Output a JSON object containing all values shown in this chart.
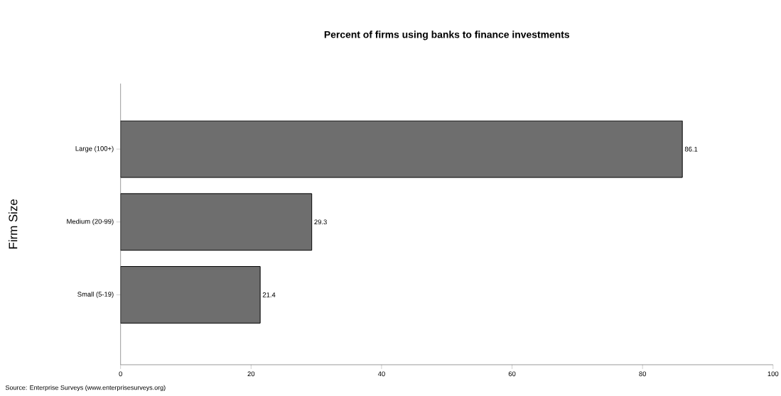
{
  "chart_data": {
    "type": "bar",
    "orientation": "horizontal",
    "title": "Percent of firms using banks to finance investments",
    "ylabel": "Firm Size",
    "categories": [
      "Large (100+)",
      "Medium (20-99)",
      "Small (5-19)"
    ],
    "values": [
      86.1,
      29.3,
      21.4
    ],
    "color": "#6e6e6e",
    "xlim": [
      0,
      100
    ],
    "xticks": [
      0,
      20,
      40,
      60,
      80,
      100
    ],
    "data_labels": true,
    "grid": false,
    "annotations": [
      "Source: Enterprise Surveys (www.enterprisesurveys.org)"
    ]
  }
}
